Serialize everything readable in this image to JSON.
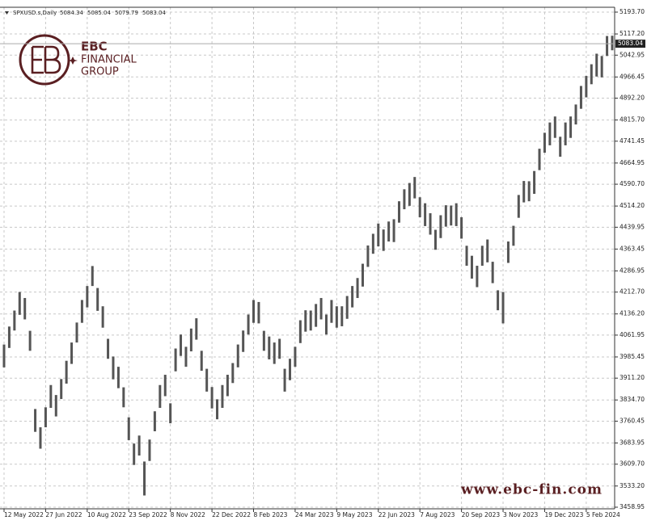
{
  "chart_data": {
    "type": "ohlc",
    "header": {
      "symbol": "SPXUSD.s,Daily",
      "values": [
        5084.34,
        5085.04,
        5079.79,
        5083.04
      ]
    },
    "logo_text": [
      "EBC",
      "FINANCIAL",
      "GROUP"
    ],
    "watermark": "www.ebc-fin.com",
    "last_price": 5083.04,
    "color": "#555555",
    "grid": true,
    "xlim": [
      0,
      117
    ],
    "ylim": [
      3453.3,
      5210.7
    ],
    "yticks": [
      {
        "value": 5193.7,
        "label": "5193.70"
      },
      {
        "value": 5117.2,
        "label": "5117.20"
      },
      5042.95,
      4966.45,
      {
        "value": 4892.2,
        "label": "4892.20"
      },
      {
        "value": 4815.7,
        "label": "4815.70"
      },
      4741.45,
      4664.95,
      {
        "value": 4590.7,
        "label": "4590.70"
      },
      {
        "value": 4514.2,
        "label": "4514.20"
      },
      4439.95,
      4363.45,
      4286.95,
      {
        "value": 4212.7,
        "label": "4212.70"
      },
      {
        "value": 4136.2,
        "label": "4136.20"
      },
      4061.95,
      3985.45,
      {
        "value": 3911.2,
        "label": "3911.20"
      },
      {
        "value": 3834.7,
        "label": "3834.70"
      },
      3760.45,
      3683.95,
      {
        "value": 3609.7,
        "label": "3609.70"
      },
      {
        "value": 3533.2,
        "label": "3533.20"
      },
      3458.95
    ],
    "xticks": [
      {
        "value": 0,
        "label": "12 May 2022"
      },
      {
        "value": 8,
        "label": "27 Jun 2022"
      },
      {
        "value": 16,
        "label": "10 Aug 2022"
      },
      {
        "value": 24,
        "label": "23 Sep 2022"
      },
      {
        "value": 32,
        "label": "8 Nov 2022"
      },
      {
        "value": 40,
        "label": "22 Dec 2022"
      },
      {
        "value": 48,
        "label": "8 Feb 2023"
      },
      {
        "value": 56,
        "label": "24 Mar 2023"
      },
      {
        "value": 64,
        "label": "9 May 2023"
      },
      {
        "value": 72,
        "label": "22 Jun 2023"
      },
      {
        "value": 80,
        "label": "7 Aug 2023"
      },
      {
        "value": 88,
        "label": "20 Sep 2023"
      },
      {
        "value": 96,
        "label": "3 Nov 2023"
      },
      {
        "value": 104,
        "label": "19 Dec 2023"
      },
      {
        "value": 112,
        "label": "5 Feb 2024"
      }
    ],
    "high": [
      4029,
      4092,
      4148,
      4213,
      4192,
      4077,
      3803,
      3739,
      3809,
      3887,
      3852,
      3908,
      3972,
      4036,
      4106,
      4185,
      4234,
      4304,
      4227,
      4163,
      4049,
      3987,
      3951,
      3879,
      3774,
      3682,
      3710,
      3619,
      3696,
      3795,
      3887,
      3923,
      3823,
      4015,
      4064,
      4021,
      4085,
      4121,
      4007,
      3944,
      3880,
      3837,
      3887,
      3923,
      3964,
      4029,
      4078,
      4134,
      4185,
      4178,
      4077,
      4057,
      4036,
      4049,
      3944,
      3979,
      4021,
      4114,
      4149,
      4148,
      4171,
      4192,
      4134,
      4185,
      4163,
      4163,
      4199,
      4234,
      4262,
      4312,
      4376,
      4417,
      4453,
      4432,
      4460,
      4468,
      4531,
      4573,
      4595,
      4616,
      4545,
      4524,
      4489,
      4431,
      4482,
      4517,
      4516,
      4524,
      4475,
      4375,
      4340,
      4305,
      4375,
      4397,
      4319,
      4219,
      4213,
      4390,
      4445,
      4553,
      4602,
      4601,
      4637,
      4715,
      4771,
      4807,
      4828,
      4757,
      4807,
      4828,
      4870,
      4935,
      4970,
      5011,
      5048,
      5040,
      5110,
      5111
    ],
    "low": [
      3949,
      4017,
      4078,
      4133,
      4117,
      4007,
      3723,
      3664,
      3739,
      3807,
      3777,
      3838,
      3892,
      3961,
      4036,
      4105,
      4159,
      4234,
      4147,
      4088,
      3979,
      3907,
      3876,
      3809,
      3694,
      3607,
      3640,
      3500,
      3621,
      3725,
      3807,
      3848,
      3753,
      3935,
      3989,
      3951,
      4005,
      4046,
      3937,
      3864,
      3805,
      3767,
      3807,
      3848,
      3894,
      3949,
      4003,
      4064,
      4105,
      4103,
      4007,
      3977,
      3961,
      3979,
      3864,
      3904,
      3951,
      4034,
      4074,
      4078,
      4091,
      4117,
      4064,
      4105,
      4088,
      4093,
      4119,
      4159,
      4192,
      4232,
      4301,
      4347,
      4373,
      4357,
      4390,
      4388,
      4456,
      4503,
      4515,
      4541,
      4475,
      4444,
      4414,
      4361,
      4402,
      4442,
      4446,
      4444,
      4400,
      4305,
      4260,
      4230,
      4305,
      4317,
      4244,
      4149,
      4103,
      4315,
      4375,
      4473,
      4527,
      4531,
      4557,
      4640,
      4701,
      4727,
      4753,
      4687,
      4727,
      4753,
      4800,
      4855,
      4895,
      4941,
      4968,
      4965,
      5040,
      5060
    ]
  }
}
